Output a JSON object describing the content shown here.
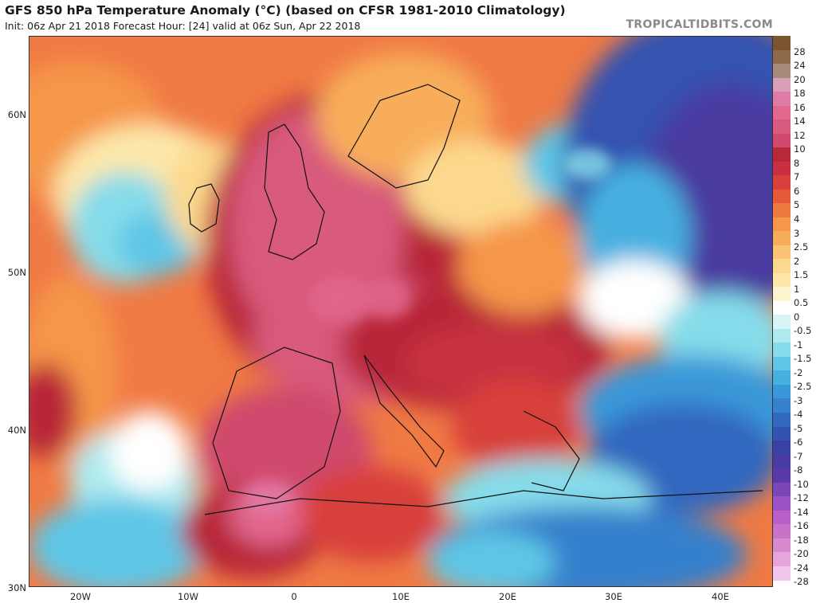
{
  "header": {
    "title": "GFS 850 hPa Temperature Anomaly (°C) (based on CFSR 1981-2010 Climatology)",
    "subtitle": "Init: 06z Apr 21 2018   Forecast Hour: [24]   valid at 06z Sun, Apr 22 2018",
    "brand": "TROPICALTIDBITS.COM"
  },
  "axes": {
    "lat_labels": [
      "60N",
      "50N",
      "40N",
      "30N"
    ],
    "lon_labels": [
      "20W",
      "10W",
      "0",
      "10E",
      "20E",
      "30E",
      "40E"
    ]
  },
  "colorbar": {
    "labels": [
      "28",
      "24",
      "20",
      "18",
      "16",
      "14",
      "12",
      "10",
      "8",
      "7",
      "6",
      "5",
      "4",
      "3",
      "2.5",
      "2",
      "1.5",
      "1",
      "0.5",
      "0",
      "-0.5",
      "-1",
      "-1.5",
      "-2",
      "-2.5",
      "-3",
      "-4",
      "-5",
      "-6",
      "-7",
      "-8",
      "-10",
      "-12",
      "-14",
      "-16",
      "-18",
      "-20",
      "-24",
      "-28"
    ],
    "colors": [
      "#7a5530",
      "#8e6a4a",
      "#a88a7a",
      "#d8a0b8",
      "#e07aa8",
      "#e2688e",
      "#d85a7c",
      "#cf4a6c",
      "#b82838",
      "#c83040",
      "#d8403a",
      "#e45a3a",
      "#ef7a3f",
      "#f5964a",
      "#f8ad5a",
      "#fbc474",
      "#fcd98e",
      "#fde8aa",
      "#fff4d0",
      "#ffffff",
      "#d8f4f6",
      "#aeeaf0",
      "#86dcea",
      "#5ec6e6",
      "#46b0e0",
      "#3a98d8",
      "#3680cc",
      "#3368bf",
      "#3452b0",
      "#3a40a4",
      "#4a3ba0",
      "#5a3aa8",
      "#7a46b8",
      "#9a52c4",
      "#b860c8",
      "#c872c8",
      "#d88ad0",
      "#e6a6dc",
      "#f2c6e8"
    ]
  }
}
